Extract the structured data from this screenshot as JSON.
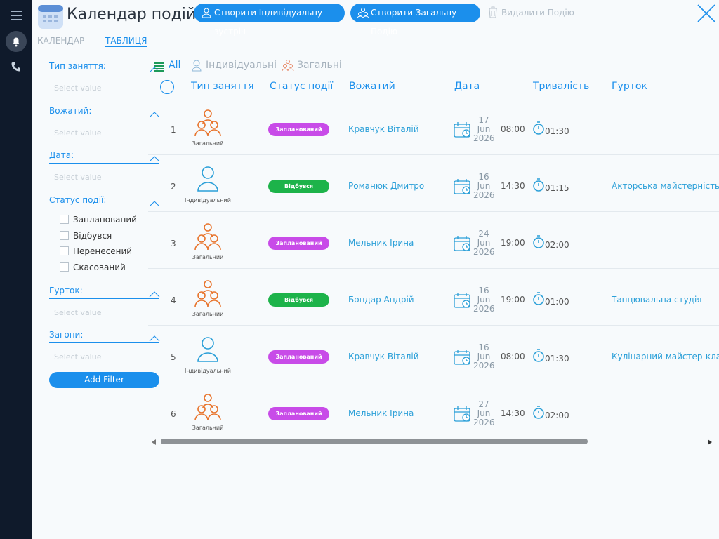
{
  "header": {
    "title": "Календар подій",
    "buttons": [
      "Створити Індивідуальну зустріч",
      "Створити Загальну Подію",
      "Видалити Подію"
    ]
  },
  "view_tabs": [
    "КАЛЕНДАР",
    "ТАБЛИЦЯ"
  ],
  "filters": [
    {
      "label": "Тип заняття:",
      "placeholder": "Select value"
    },
    {
      "label": "Вожатий:",
      "placeholder": "Select value"
    },
    {
      "label": "Дата:",
      "placeholder": "Select value"
    },
    {
      "label": "Статус події:",
      "options": [
        "Запланований",
        "Відбувся",
        "Перенесений",
        "Скасований"
      ]
    },
    {
      "label": "Гурток:",
      "placeholder": "Select value"
    },
    {
      "label": "Загони:",
      "placeholder": "Select value"
    }
  ],
  "add_filter": "Add Filter",
  "type_tabs": [
    "All",
    "Індивідуальні",
    "Загальні"
  ],
  "table": {
    "columns": [
      "Тип заняття",
      "Статус події",
      "Вожатий",
      "Дата",
      "Тривалість",
      "Гурток"
    ],
    "rows": [
      {
        "number": 1,
        "type": "Загальний",
        "type_icon": "group",
        "type_color": "#e8742c",
        "status": "Запланований",
        "status_color": "#c84be8",
        "leader": "Кравчук Віталій",
        "day": 17,
        "month": "Jun",
        "year": 2026,
        "time": "08:00",
        "duration": "01:30"
      },
      {
        "number": 2,
        "type": "Індивідуальний",
        "type_icon": "person",
        "type_color": "#2a9fd8",
        "status": "Відбувся",
        "status_color": "#1db34a",
        "leader": "Романюк Дмитро",
        "day": 16,
        "month": "Jun",
        "year": 2026,
        "time": "14:30",
        "duration": "01:15",
        "club": "Акторська майстерність &"
      },
      {
        "number": 3,
        "type": "Загальний",
        "type_icon": "group",
        "type_color": "#e8742c",
        "status": "Запланований",
        "status_color": "#c84be8",
        "leader": "Мельник Ірина",
        "day": 24,
        "month": "Jun",
        "year": 2026,
        "time": "19:00",
        "duration": "02:00"
      },
      {
        "number": 4,
        "type": "Загальний",
        "type_icon": "group",
        "type_color": "#e8742c",
        "status": "Відбувся",
        "status_color": "#1db34a",
        "leader": "Бондар Андрій",
        "day": 16,
        "month": "Jun",
        "year": 2026,
        "time": "19:00",
        "duration": "01:00",
        "club": "Танцювальна студія"
      },
      {
        "number": 5,
        "type": "Індивідуальний",
        "type_icon": "person",
        "type_color": "#2a9fd8",
        "status": "Запланований",
        "status_color": "#c84be8",
        "leader": "Кравчук Віталій",
        "day": 16,
        "month": "Jun",
        "year": 2026,
        "time": "08:00",
        "duration": "01:30",
        "club": "Кулінарний майстер-клас"
      },
      {
        "number": 6,
        "type": "Загальний",
        "type_icon": "group",
        "type_color": "#e8742c",
        "status": "Запланований",
        "status_color": "#c84be8",
        "leader": "Мельник Ірина",
        "day": 27,
        "month": "Jun",
        "year": 2026,
        "time": "14:30",
        "duration": "02:00"
      }
    ]
  }
}
